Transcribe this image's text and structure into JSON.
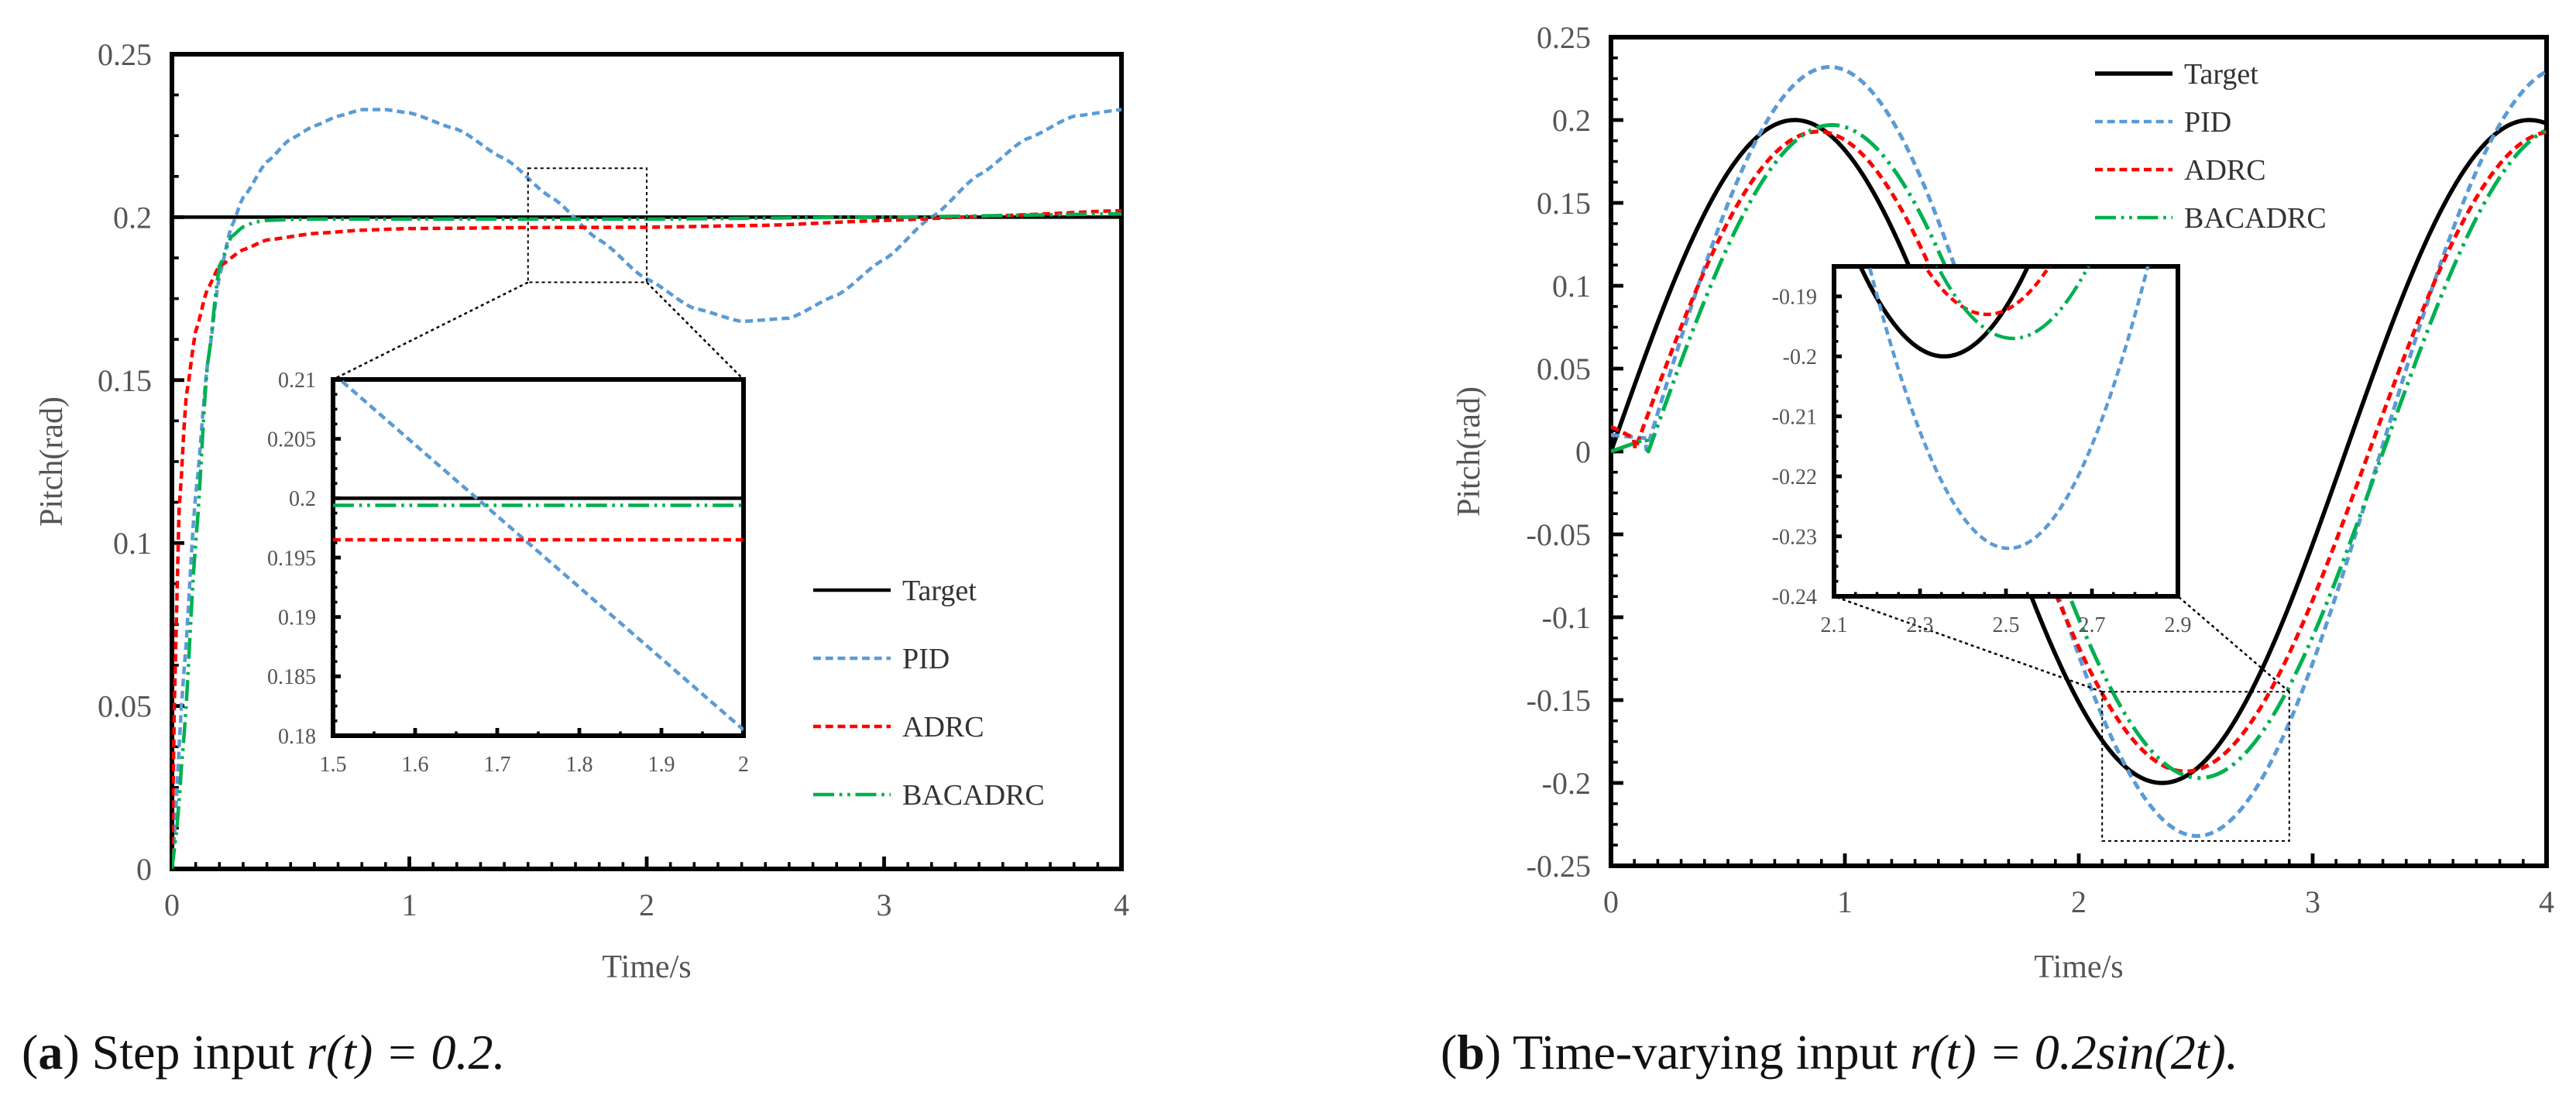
{
  "chart_data": [
    {
      "type": "line",
      "panel": "a",
      "caption_letter": "a",
      "caption_text": "Step input r(t) = 0.2.",
      "xlabel": "Time/s",
      "ylabel": "Pitch(rad)",
      "xlim": [
        0,
        4
      ],
      "ylim": [
        0,
        0.25
      ],
      "xticks": [
        "0",
        "1",
        "2",
        "3",
        "4"
      ],
      "yticks": [
        "0",
        "0.05",
        "0.1",
        "0.15",
        "0.2",
        "0.25"
      ],
      "legend": [
        "Target",
        "PID",
        "ADRC",
        "BACADRC"
      ],
      "legend_position": "lower-right",
      "series": [
        {
          "name": "Target",
          "color": "#000000",
          "style": "solid",
          "x": [
            0,
            4
          ],
          "y": [
            0.2,
            0.2
          ]
        },
        {
          "name": "PID",
          "color": "#5b9bd5",
          "style": "dashed",
          "x": [
            0,
            0.05,
            0.1,
            0.15,
            0.2,
            0.25,
            0.3,
            0.4,
            0.5,
            0.6,
            0.7,
            0.8,
            0.9,
            1.0,
            1.2,
            1.4,
            1.6,
            1.8,
            2.0,
            2.2,
            2.4,
            2.6,
            2.8,
            3.0,
            3.2,
            3.4,
            3.6,
            3.8,
            4.0
          ],
          "y": [
            0,
            0.06,
            0.115,
            0.155,
            0.182,
            0.197,
            0.206,
            0.217,
            0.224,
            0.228,
            0.231,
            0.233,
            0.233,
            0.232,
            0.227,
            0.218,
            0.206,
            0.193,
            0.181,
            0.172,
            0.168,
            0.169,
            0.176,
            0.187,
            0.2,
            0.213,
            0.224,
            0.231,
            0.233
          ]
        },
        {
          "name": "ADRC",
          "color": "#ff0000",
          "style": "dashed",
          "x": [
            0,
            0.01,
            0.03,
            0.06,
            0.1,
            0.15,
            0.2,
            0.3,
            0.4,
            0.6,
            0.8,
            1.0,
            1.5,
            2.0,
            2.5,
            3.0,
            3.5,
            4.0
          ],
          "y": [
            0,
            0.05,
            0.11,
            0.145,
            0.165,
            0.178,
            0.185,
            0.19,
            0.193,
            0.195,
            0.196,
            0.1965,
            0.1968,
            0.1969,
            0.1975,
            0.199,
            0.2005,
            0.202
          ]
        },
        {
          "name": "BACADRC",
          "color": "#00b050",
          "style": "dashdotdot",
          "x": [
            0,
            0.02,
            0.05,
            0.1,
            0.15,
            0.2,
            0.25,
            0.3,
            0.35,
            0.4,
            0.5,
            0.6,
            1.0,
            2.0,
            3.0,
            4.0
          ],
          "y": [
            0,
            0.012,
            0.04,
            0.1,
            0.155,
            0.185,
            0.194,
            0.197,
            0.1985,
            0.199,
            0.1993,
            0.1994,
            0.1994,
            0.1994,
            0.2,
            0.201
          ]
        }
      ],
      "inset": {
        "xlim": [
          1.5,
          2
        ],
        "ylim": [
          0.18,
          0.21
        ],
        "xticks": [
          "1.5",
          "1.6",
          "1.7",
          "1.8",
          "1.9",
          "2"
        ],
        "yticks": [
          "0.18",
          "0.185",
          "0.19",
          "0.195",
          "0.2",
          "0.205",
          "0.21"
        ],
        "zoom_box": {
          "x": [
            1.5,
            2
          ],
          "y": [
            0.18,
            0.215
          ]
        },
        "series": [
          {
            "name": "Target",
            "x": [
              1.5,
              2
            ],
            "y": [
              0.2,
              0.2
            ]
          },
          {
            "name": "PID",
            "x": [
              1.5,
              2
            ],
            "y": [
              0.2105,
              0.1805
            ]
          },
          {
            "name": "ADRC",
            "x": [
              1.5,
              2
            ],
            "y": [
              0.1965,
              0.1965
            ]
          },
          {
            "name": "BACADRC",
            "x": [
              1.5,
              2
            ],
            "y": [
              0.1994,
              0.1994
            ]
          }
        ]
      }
    },
    {
      "type": "line",
      "panel": "b",
      "caption_letter": "b",
      "caption_text": "Time-varying input r(t) = 0.2sin(2t).",
      "xlabel": "Time/s",
      "ylabel": "Pitch(rad)",
      "xlim": [
        0,
        4
      ],
      "ylim": [
        -0.25,
        0.25
      ],
      "xticks": [
        "0",
        "1",
        "2",
        "3",
        "4"
      ],
      "yticks": [
        "-0.25",
        "-0.2",
        "-0.15",
        "-0.1",
        "-0.05",
        "0",
        "0.05",
        "0.1",
        "0.15",
        "0.2",
        "0.25"
      ],
      "legend": [
        "Target",
        "PID",
        "ADRC",
        "BACADRC"
      ],
      "legend_position": "top-center",
      "series": [
        {
          "name": "Target",
          "color": "#000000",
          "style": "solid",
          "phase": 0.0,
          "amp": 0.2,
          "start": 0.0,
          "start_y": 0.0
        },
        {
          "name": "PID",
          "color": "#5b9bd5",
          "style": "dashed",
          "phase": 0.15,
          "amp": 0.232,
          "start": 0.0,
          "start_y": 0.01
        },
        {
          "name": "ADRC",
          "color": "#ff0000",
          "style": "dashed",
          "phase": 0.1,
          "amp": 0.193,
          "start": 0.0,
          "start_y": 0.015
        },
        {
          "name": "BACADRC",
          "color": "#00b050",
          "style": "dashdotdot",
          "phase": 0.16,
          "amp": 0.197,
          "start": 0.0,
          "start_y": 0.0
        }
      ],
      "inset": {
        "xlim": [
          2.1,
          2.9
        ],
        "ylim": [
          -0.24,
          -0.185
        ],
        "xticks": [
          "2.1",
          "2.3",
          "2.5",
          "2.7",
          "2.9"
        ],
        "yticks": [
          "-0.24",
          "-0.23",
          "-0.22",
          "-0.21",
          "-0.2",
          "-0.19"
        ],
        "zoom_box": {
          "x": [
            2.1,
            2.9
          ],
          "y": [
            -0.235,
            -0.145
          ]
        }
      }
    }
  ],
  "captions": {
    "a": {
      "letter": "a",
      "prefix": "Step input ",
      "math": "r(t) = 0.2."
    },
    "b": {
      "letter": "b",
      "prefix": "Time-varying input ",
      "math": "r(t) = 0.2sin(2t)."
    }
  }
}
